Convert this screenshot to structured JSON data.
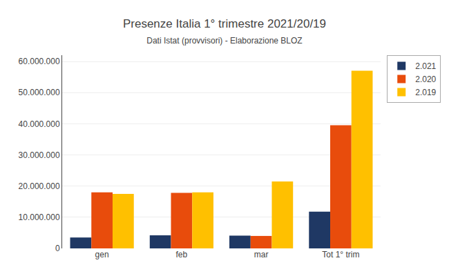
{
  "chart_data": {
    "type": "bar",
    "title": "Presenze Italia 1° trimestre 2021/20/19",
    "subtitle": "Dati Istat (provvisori) - Elaborazione BLOZ",
    "categories": [
      "gen",
      "feb",
      "mar",
      "Tot 1° trim"
    ],
    "series": [
      {
        "name": "2.021",
        "color": "#1F3864",
        "values": [
          3500000,
          4200000,
          4100000,
          11800000
        ]
      },
      {
        "name": "2.020",
        "color": "#E84C0C",
        "values": [
          18000000,
          17800000,
          4000000,
          39500000
        ]
      },
      {
        "name": "2.019",
        "color": "#FFC000",
        "values": [
          17500000,
          18000000,
          21500000,
          57000000
        ]
      }
    ],
    "ylim": [
      0,
      62000000
    ],
    "yticks": [
      0,
      {
        "value": 10000000,
        "label": "10.000.000"
      },
      {
        "value": 20000000,
        "label": "20.000.000"
      },
      {
        "value": 30000000,
        "label": "30.000.000"
      },
      {
        "value": 40000000,
        "label": "40.000.000"
      },
      {
        "value": 50000000,
        "label": "50.000.000"
      },
      {
        "value": 60000000,
        "label": "60.000.000"
      }
    ],
    "grid": true,
    "legend": "upper right"
  }
}
